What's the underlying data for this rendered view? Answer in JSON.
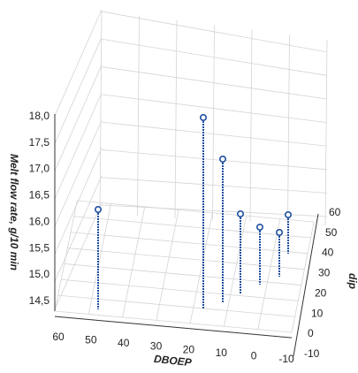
{
  "chart_data": {
    "type": "scatter-3d",
    "style": "points with vertical drop lines",
    "z_label": "Melt flow rate, g/10 min",
    "x_label": "DBOEP",
    "y_label": "dip",
    "z_ticks": [
      "14,5",
      "15,0",
      "15,5",
      "16,0",
      "16,5",
      "17,0",
      "17,5",
      "18,0"
    ],
    "x_ticks": [
      "60",
      "50",
      "40",
      "30",
      "20",
      "10",
      "0",
      "-10"
    ],
    "y_ticks": [
      "-10",
      "0",
      "10",
      "20",
      "30",
      "40",
      "50",
      "60"
    ],
    "zlim": [
      14.2,
      18.0
    ],
    "xlim": [
      -10,
      60
    ],
    "ylim": [
      -10,
      60
    ],
    "grid": true,
    "points": [
      {
        "x": 50,
        "y": 0,
        "z": 16.2
      },
      {
        "x": 10,
        "y": 30,
        "z": 17.9
      },
      {
        "x": 0,
        "y": 35,
        "z": 17.1
      },
      {
        "x": 0,
        "y": 40,
        "z": 16.1
      },
      {
        "x": 0,
        "y": 50,
        "z": 15.9
      },
      {
        "x": -5,
        "y": 50,
        "z": 15.8
      },
      {
        "x": -5,
        "y": 60,
        "z": 16.0
      }
    ],
    "colors": {
      "marker": "#1f4fa0",
      "drop_line": "#1f4fa0",
      "grid": "#d4d4d4",
      "axis": "#333333"
    }
  }
}
